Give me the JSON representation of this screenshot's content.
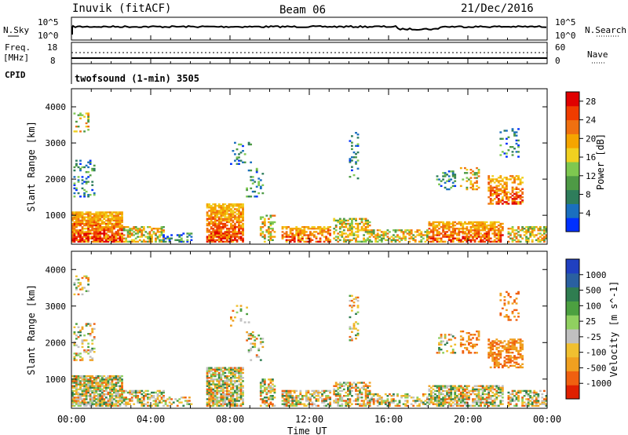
{
  "header": {
    "station": "Inuvik (fitACF)",
    "beam": "Beam 06",
    "date": "21/Dec/2016"
  },
  "noise_panel": {
    "left_label": "N.Sky",
    "right_label": "N.Search",
    "left_ticks": [
      "10^5",
      "10^0"
    ],
    "right_ticks": [
      "10^5",
      "10^0"
    ]
  },
  "freq_panel": {
    "left_label_line1": "Freq.",
    "left_label_line2": "[MHz]",
    "left_ticks": [
      "18",
      "8"
    ],
    "right_ticks": [
      "60",
      "0"
    ],
    "right_label": "Nave",
    "cpid_label": "CPID",
    "cpid_value": "twofsound (1-min) 3505"
  },
  "colors": {
    "power": [
      "#0030ff",
      "#1a6fbf",
      "#2e7d5b",
      "#4e9a45",
      "#7ec850",
      "#f0d020",
      "#f5a500",
      "#f07010",
      "#f03c00",
      "#e00000"
    ],
    "velocity": [
      "#2040c0",
      "#2a60a0",
      "#2f7d50",
      "#4ca040",
      "#90d060",
      "#c0c0c0",
      "#f0c030",
      "#f0a020",
      "#f06010",
      "#e02000"
    ]
  },
  "chart_data": [
    {
      "type": "heatmap",
      "title": "",
      "xlabel": "",
      "ylabel": "Slant Range [km]",
      "xticks": [
        "00:00",
        "04:00",
        "08:00",
        "12:00",
        "16:00",
        "20:00",
        "00:00"
      ],
      "yticks": [
        "1000",
        "2000",
        "3000",
        "4000"
      ],
      "ylim": [
        200,
        4500
      ],
      "colorbar": {
        "label": "Power [dB]",
        "ticks": [
          "4",
          "8",
          "12",
          "16",
          "20",
          "24",
          "28"
        ],
        "range": [
          0,
          30
        ]
      }
    },
    {
      "type": "heatmap",
      "title": "",
      "xlabel": "Time UT",
      "ylabel": "Slant Range [km]",
      "xticks": [
        "00:00",
        "04:00",
        "08:00",
        "12:00",
        "16:00",
        "20:00",
        "00:00"
      ],
      "yticks": [
        "1000",
        "2000",
        "3000",
        "4000"
      ],
      "ylim": [
        200,
        4500
      ],
      "colorbar": {
        "label": "Velocity [m s^-1]",
        "ticks": [
          "1000",
          "500",
          "100",
          "25",
          "-25",
          "-100",
          "-500",
          "-1000"
        ],
        "range": [
          -1000,
          1000
        ]
      }
    }
  ]
}
